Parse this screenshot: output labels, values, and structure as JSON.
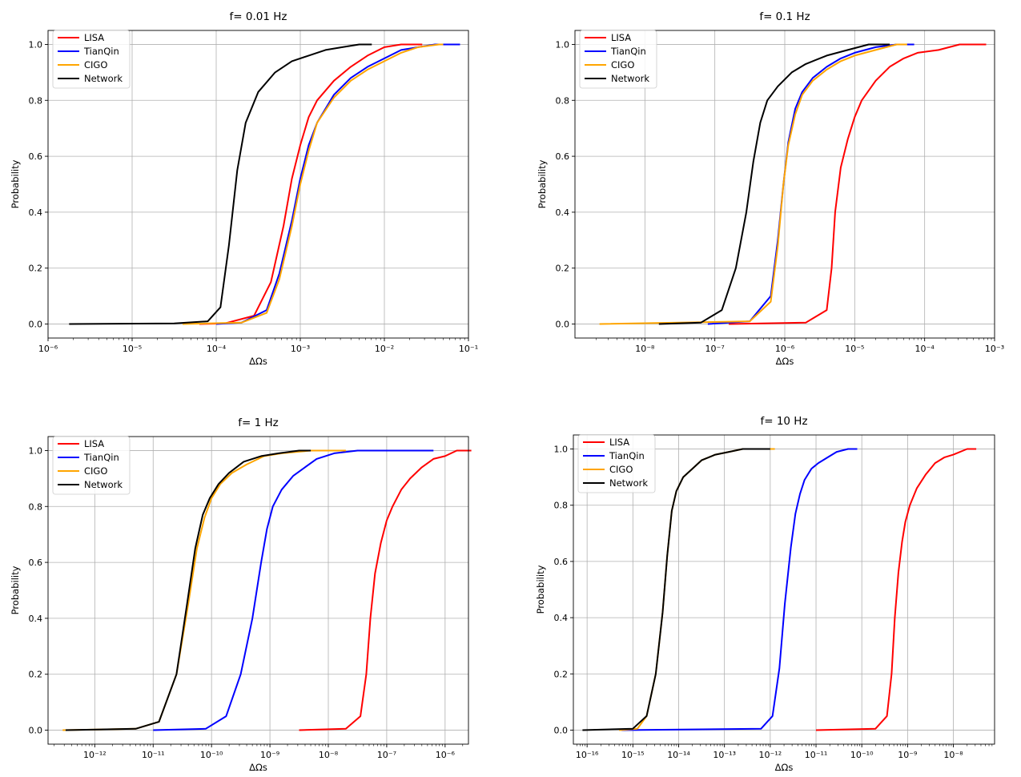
{
  "figure": {
    "panel_count": 4
  },
  "chart_data": [
    {
      "type": "line",
      "title": "f= 0.01 Hz",
      "xlabel": "ΔΩs",
      "ylabel": "Probability",
      "xscale": "log",
      "xlim_log10": [
        -6,
        -1
      ],
      "xticks": [
        {
          "p": -6,
          "label": "10⁻⁶"
        },
        {
          "p": -5,
          "label": "10⁻⁵"
        },
        {
          "p": -4,
          "label": "10⁻⁴"
        },
        {
          "p": -3,
          "label": "10⁻³"
        },
        {
          "p": -2,
          "label": "10⁻²"
        },
        {
          "p": -1,
          "label": "10⁻¹"
        }
      ],
      "ylim": [
        -0.05,
        1.05
      ],
      "yticks": [
        "0.0",
        "0.2",
        "0.4",
        "0.6",
        "0.8",
        "1.0"
      ],
      "grid": true,
      "legend_position": "upper-left",
      "series": [
        {
          "name": "LISA",
          "color": "#ff0000",
          "x_log10": [
            -4.2,
            -3.9,
            -3.55,
            -3.35,
            -3.2,
            -3.1,
            -3.0,
            -2.9,
            -2.8,
            -2.6,
            -2.4,
            -2.2,
            -2.0,
            -1.8,
            -1.6,
            -1.55
          ],
          "y": [
            0.0,
            0.002,
            0.03,
            0.15,
            0.35,
            0.52,
            0.64,
            0.74,
            0.8,
            0.87,
            0.92,
            0.96,
            0.99,
            1.0,
            1.0,
            1.0
          ]
        },
        {
          "name": "TianQin",
          "color": "#0000ff",
          "x_log10": [
            -4.0,
            -3.7,
            -3.4,
            -3.25,
            -3.1,
            -3.0,
            -2.9,
            -2.8,
            -2.6,
            -2.4,
            -2.2,
            -2.0,
            -1.8,
            -1.6,
            -1.4,
            -1.1
          ],
          "y": [
            0.0,
            0.005,
            0.05,
            0.18,
            0.37,
            0.52,
            0.64,
            0.72,
            0.82,
            0.88,
            0.92,
            0.95,
            0.98,
            0.99,
            1.0,
            1.0
          ]
        },
        {
          "name": "CIGO",
          "color": "#ffa500",
          "x_log10": [
            -4.4,
            -3.7,
            -3.4,
            -3.25,
            -3.1,
            -3.0,
            -2.9,
            -2.8,
            -2.6,
            -2.4,
            -2.2,
            -2.0,
            -1.8,
            -1.6,
            -1.35,
            -1.3
          ],
          "y": [
            0.0,
            0.005,
            0.04,
            0.16,
            0.35,
            0.5,
            0.62,
            0.72,
            0.81,
            0.87,
            0.91,
            0.94,
            0.97,
            0.99,
            1.0,
            1.0
          ]
        },
        {
          "name": "Network",
          "color": "#000000",
          "x_log10": [
            -5.75,
            -4.5,
            -4.1,
            -3.95,
            -3.85,
            -3.75,
            -3.65,
            -3.5,
            -3.3,
            -3.1,
            -2.9,
            -2.7,
            -2.5,
            -2.3,
            -2.15
          ],
          "y": [
            0.0,
            0.002,
            0.01,
            0.06,
            0.28,
            0.55,
            0.72,
            0.83,
            0.9,
            0.94,
            0.96,
            0.98,
            0.99,
            1.0,
            1.0
          ]
        }
      ]
    },
    {
      "type": "line",
      "title": "f= 0.1 Hz",
      "xlabel": "ΔΩs",
      "ylabel": "Probability",
      "xscale": "log",
      "xlim_log10": [
        -9,
        -3
      ],
      "xticks": [
        {
          "p": -8,
          "label": "10⁻⁸"
        },
        {
          "p": -7,
          "label": "10⁻⁷"
        },
        {
          "p": -6,
          "label": "10⁻⁶"
        },
        {
          "p": -5,
          "label": "10⁻⁵"
        },
        {
          "p": -4,
          "label": "10⁻⁴"
        },
        {
          "p": -3,
          "label": "10⁻³"
        }
      ],
      "ylim": [
        -0.05,
        1.05
      ],
      "yticks": [
        "0.0",
        "0.2",
        "0.4",
        "0.6",
        "0.8",
        "1.0"
      ],
      "grid": true,
      "legend_position": "upper-left",
      "series": [
        {
          "name": "LISA",
          "color": "#ff0000",
          "x_log10": [
            -6.8,
            -5.7,
            -5.4,
            -5.33,
            -5.28,
            -5.2,
            -5.1,
            -5.0,
            -4.9,
            -4.7,
            -4.5,
            -4.3,
            -4.1,
            -3.8,
            -3.5,
            -3.12
          ],
          "y": [
            0.0,
            0.005,
            0.05,
            0.2,
            0.4,
            0.56,
            0.66,
            0.74,
            0.8,
            0.87,
            0.92,
            0.95,
            0.97,
            0.98,
            1.0,
            1.0
          ]
        },
        {
          "name": "TianQin",
          "color": "#0000ff",
          "x_log10": [
            -7.1,
            -6.5,
            -6.2,
            -6.1,
            -6.02,
            -5.95,
            -5.85,
            -5.75,
            -5.6,
            -5.4,
            -5.2,
            -5.0,
            -4.7,
            -4.4,
            -4.2,
            -4.15
          ],
          "y": [
            0.0,
            0.01,
            0.1,
            0.3,
            0.5,
            0.65,
            0.77,
            0.83,
            0.88,
            0.92,
            0.95,
            0.97,
            0.99,
            1.0,
            1.0,
            1.0
          ]
        },
        {
          "name": "CIGO",
          "color": "#ffa500",
          "x_log10": [
            -8.65,
            -6.5,
            -6.2,
            -6.1,
            -6.02,
            -5.95,
            -5.85,
            -5.75,
            -5.6,
            -5.4,
            -5.2,
            -5.0,
            -4.7,
            -4.4,
            -4.25
          ],
          "y": [
            0.0,
            0.01,
            0.08,
            0.28,
            0.5,
            0.64,
            0.75,
            0.82,
            0.87,
            0.91,
            0.94,
            0.96,
            0.98,
            1.0,
            1.0
          ]
        },
        {
          "name": "Network",
          "color": "#000000",
          "x_log10": [
            -7.8,
            -7.2,
            -6.9,
            -6.7,
            -6.55,
            -6.45,
            -6.35,
            -6.25,
            -6.1,
            -5.9,
            -5.7,
            -5.4,
            -5.1,
            -4.8,
            -4.5
          ],
          "y": [
            0.0,
            0.005,
            0.05,
            0.2,
            0.4,
            0.58,
            0.72,
            0.8,
            0.85,
            0.9,
            0.93,
            0.96,
            0.98,
            1.0,
            1.0
          ]
        }
      ]
    },
    {
      "type": "line",
      "title": "f= 1 Hz",
      "xlabel": "ΔΩs",
      "ylabel": "Probability",
      "xscale": "log",
      "xlim_log10": [
        -12.8,
        -5.6
      ],
      "xticks": [
        {
          "p": -12,
          "label": "10⁻¹²"
        },
        {
          "p": -11,
          "label": "10⁻¹¹"
        },
        {
          "p": -10,
          "label": "10⁻¹⁰"
        },
        {
          "p": -9,
          "label": "10⁻⁹"
        },
        {
          "p": -8,
          "label": "10⁻⁸"
        },
        {
          "p": -7,
          "label": "10⁻⁷"
        },
        {
          "p": -6,
          "label": "10⁻⁶"
        }
      ],
      "ylim": [
        -0.05,
        1.05
      ],
      "yticks": [
        "0.0",
        "0.2",
        "0.4",
        "0.6",
        "0.8",
        "1.0"
      ],
      "grid": true,
      "legend_position": "upper-left",
      "series": [
        {
          "name": "LISA",
          "color": "#ff0000",
          "x_log10": [
            -8.5,
            -7.7,
            -7.45,
            -7.35,
            -7.28,
            -7.2,
            -7.1,
            -7.0,
            -6.9,
            -6.75,
            -6.6,
            -6.4,
            -6.2,
            -6.0,
            -5.8,
            -5.55
          ],
          "y": [
            0.0,
            0.005,
            0.05,
            0.2,
            0.4,
            0.56,
            0.67,
            0.75,
            0.8,
            0.86,
            0.9,
            0.94,
            0.97,
            0.98,
            1.0,
            1.0
          ]
        },
        {
          "name": "TianQin",
          "color": "#0000ff",
          "x_log10": [
            -11.0,
            -10.1,
            -9.75,
            -9.5,
            -9.3,
            -9.15,
            -9.05,
            -8.95,
            -8.8,
            -8.6,
            -8.4,
            -8.2,
            -7.9,
            -7.5,
            -7.0,
            -6.2
          ],
          "y": [
            0.0,
            0.005,
            0.05,
            0.2,
            0.4,
            0.6,
            0.72,
            0.8,
            0.86,
            0.91,
            0.94,
            0.97,
            0.99,
            1.0,
            1.0,
            1.0
          ]
        },
        {
          "name": "CIGO",
          "color": "#ffa500",
          "x_log10": [
            -12.55,
            -11.3,
            -10.9,
            -10.6,
            -10.4,
            -10.25,
            -10.12,
            -10.0,
            -9.85,
            -9.65,
            -9.4,
            -9.1,
            -8.8,
            -8.3,
            -7.7
          ],
          "y": [
            0.0,
            0.005,
            0.03,
            0.2,
            0.45,
            0.65,
            0.76,
            0.83,
            0.88,
            0.92,
            0.95,
            0.98,
            0.99,
            1.0,
            1.0
          ]
        },
        {
          "name": "Network",
          "color": "#000000",
          "x_log10": [
            -12.5,
            -11.3,
            -10.9,
            -10.6,
            -10.42,
            -10.28,
            -10.15,
            -10.03,
            -9.88,
            -9.7,
            -9.45,
            -9.15,
            -8.85,
            -8.5,
            -8.3
          ],
          "y": [
            0.0,
            0.005,
            0.03,
            0.2,
            0.45,
            0.65,
            0.77,
            0.83,
            0.88,
            0.92,
            0.96,
            0.98,
            0.99,
            1.0,
            1.0
          ]
        }
      ]
    },
    {
      "type": "line",
      "title": "f= 10 Hz",
      "xlabel": "ΔΩs",
      "ylabel": "Probability",
      "xscale": "log",
      "xlim_log10": [
        -16.3,
        -7.1
      ],
      "xticks": [
        {
          "p": -16,
          "label": "10⁻¹⁶"
        },
        {
          "p": -15,
          "label": "10⁻¹⁵"
        },
        {
          "p": -14,
          "label": "10⁻¹⁴"
        },
        {
          "p": -13,
          "label": "10⁻¹³"
        },
        {
          "p": -12,
          "label": "10⁻¹²"
        },
        {
          "p": -11,
          "label": "10⁻¹¹"
        },
        {
          "p": -10,
          "label": "10⁻¹⁰"
        },
        {
          "p": -9,
          "label": "10⁻⁹"
        },
        {
          "p": -8,
          "label": "10⁻⁸"
        }
      ],
      "ylim": [
        -0.05,
        1.05
      ],
      "yticks": [
        "0.0",
        "0.2",
        "0.4",
        "0.6",
        "0.8",
        "1.0"
      ],
      "grid": true,
      "legend_position": "upper-left",
      "series": [
        {
          "name": "LISA",
          "color": "#ff0000",
          "x_log10": [
            -11.0,
            -9.7,
            -9.45,
            -9.35,
            -9.28,
            -9.2,
            -9.12,
            -9.05,
            -8.95,
            -8.8,
            -8.6,
            -8.4,
            -8.2,
            -8.0,
            -7.7,
            -7.5
          ],
          "y": [
            0.0,
            0.005,
            0.05,
            0.2,
            0.4,
            0.56,
            0.67,
            0.74,
            0.8,
            0.86,
            0.91,
            0.95,
            0.97,
            0.98,
            1.0,
            1.0
          ]
        },
        {
          "name": "TianQin",
          "color": "#0000ff",
          "x_log10": [
            -15.25,
            -12.2,
            -11.95,
            -11.8,
            -11.68,
            -11.55,
            -11.45,
            -11.35,
            -11.25,
            -11.1,
            -10.95,
            -10.75,
            -10.55,
            -10.3,
            -10.1
          ],
          "y": [
            0.0,
            0.005,
            0.05,
            0.22,
            0.45,
            0.65,
            0.77,
            0.84,
            0.89,
            0.93,
            0.95,
            0.97,
            0.99,
            1.0,
            1.0
          ]
        },
        {
          "name": "CIGO",
          "color": "#ffa500",
          "x_log10": [
            -15.3,
            -14.9,
            -14.7,
            -14.5,
            -14.35,
            -14.25,
            -14.15,
            -14.05,
            -13.9,
            -13.7,
            -13.5,
            -13.2,
            -12.9,
            -12.6,
            -12.2,
            -11.9
          ],
          "y": [
            0.0,
            0.005,
            0.05,
            0.2,
            0.42,
            0.62,
            0.78,
            0.85,
            0.9,
            0.93,
            0.96,
            0.98,
            0.99,
            1.0,
            1.0,
            1.0
          ]
        },
        {
          "name": "Network",
          "color": "#000000",
          "x_log10": [
            -16.1,
            -15.0,
            -14.7,
            -14.5,
            -14.35,
            -14.25,
            -14.15,
            -14.05,
            -13.9,
            -13.7,
            -13.5,
            -13.2,
            -12.9,
            -12.6,
            -12.2,
            -12.0
          ],
          "y": [
            0.0,
            0.005,
            0.05,
            0.2,
            0.42,
            0.62,
            0.78,
            0.85,
            0.9,
            0.93,
            0.96,
            0.98,
            0.99,
            1.0,
            1.0,
            1.0
          ]
        }
      ]
    }
  ]
}
